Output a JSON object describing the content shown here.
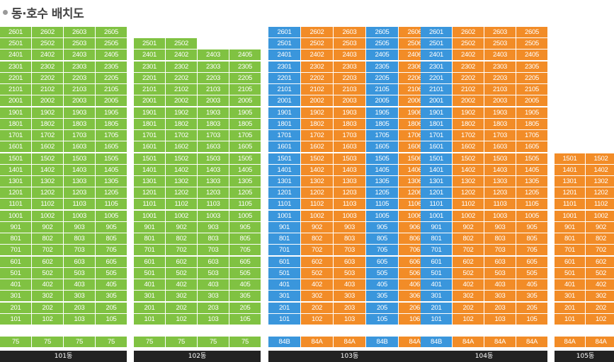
{
  "title": "동·호수 배치도",
  "colors": {
    "type_75": "#80c242",
    "type_84A": "#f28c27",
    "type_84B": "#3a96dc",
    "label_bg": "#222222"
  },
  "buildings": [
    {
      "name": "101동",
      "lines": [
        {
          "line": "01",
          "type": "75",
          "floors": 26
        },
        {
          "line": "02",
          "type": "75",
          "floors": 26
        },
        {
          "line": "03",
          "type": "75",
          "floors": 26
        },
        {
          "line": "05",
          "type": "75",
          "floors": 26
        }
      ]
    },
    {
      "name": "102동",
      "lines": [
        {
          "line": "01",
          "type": "75",
          "floors": 25
        },
        {
          "line": "02",
          "type": "75",
          "floors": 25
        },
        {
          "line": "03",
          "type": "75",
          "floors": 24
        },
        {
          "line": "05",
          "type": "75",
          "floors": 24
        }
      ]
    },
    {
      "name": "103동",
      "lines": [
        {
          "line": "01",
          "type": "84B",
          "floors": 26
        },
        {
          "line": "02",
          "type": "84A",
          "floors": 26
        },
        {
          "line": "03",
          "type": "84A",
          "floors": 26
        },
        {
          "line": "05",
          "type": "84B",
          "floors": 26
        },
        {
          "line": "06",
          "type": "84A",
          "floors": 26
        }
      ]
    },
    {
      "name": "104동",
      "lines": [
        {
          "line": "01",
          "type": "84B",
          "floors": 26
        },
        {
          "line": "02",
          "type": "84A",
          "floors": 26
        },
        {
          "line": "03",
          "type": "84A",
          "floors": 26
        },
        {
          "line": "05",
          "type": "84A",
          "floors": 26
        }
      ]
    },
    {
      "name": "105동",
      "lines": [
        {
          "line": "01",
          "type": "84A",
          "floors": 15
        },
        {
          "line": "02",
          "type": "84A",
          "floors": 15
        }
      ]
    }
  ]
}
